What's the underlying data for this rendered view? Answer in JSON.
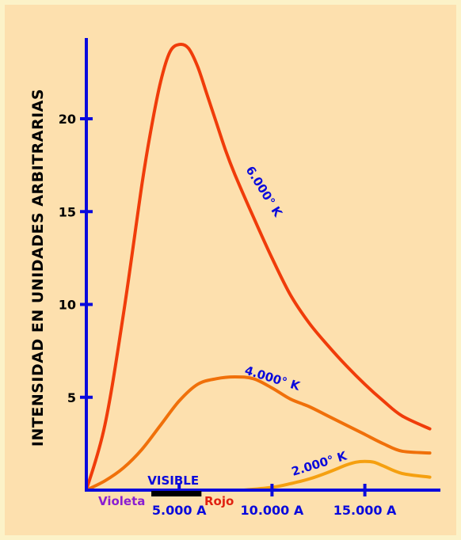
{
  "chart_data": {
    "type": "line",
    "title": "",
    "ylabel": "INTENSIDAD EN UNIDADES ARBITRARIAS",
    "xlabel": "",
    "xlim": [
      0,
      17500
    ],
    "ylim": [
      0,
      24
    ],
    "x_ticks": [
      {
        "value": 5000,
        "label": "5.000 A"
      },
      {
        "value": 10000,
        "label": "10.000 A"
      },
      {
        "value": 15000,
        "label": "15.000 A"
      }
    ],
    "y_ticks": [
      {
        "value": 5,
        "label": "5"
      },
      {
        "value": 10,
        "label": "10"
      },
      {
        "value": 15,
        "label": "15"
      },
      {
        "value": 20,
        "label": "20"
      }
    ],
    "series": [
      {
        "name": "6.000° K",
        "color": "#f03c0a",
        "x": [
          0,
          1000,
          2000,
          3000,
          3500,
          4000,
          4500,
          5000,
          5500,
          6000,
          6500,
          7000,
          7500,
          8000,
          9000,
          10000,
          11000,
          12000,
          13000,
          14000,
          15000,
          16000,
          17000,
          18500
        ],
        "y": [
          0,
          3.5,
          9.5,
          16.5,
          19.5,
          22,
          23.6,
          24,
          23.8,
          22.8,
          21.3,
          19.8,
          18.3,
          17,
          14.7,
          12.5,
          10.5,
          9,
          7.8,
          6.7,
          5.7,
          4.8,
          4,
          3.3
        ]
      },
      {
        "name": "4.000° K",
        "color": "#f0700a",
        "x": [
          0,
          1000,
          2000,
          3000,
          4000,
          5000,
          6000,
          7000,
          8000,
          9000,
          10000,
          11000,
          12000,
          13000,
          14000,
          15000,
          16000,
          17000,
          18500
        ],
        "y": [
          0,
          0.5,
          1.2,
          2.2,
          3.5,
          4.8,
          5.7,
          6,
          6.1,
          6,
          5.5,
          4.9,
          4.5,
          4,
          3.5,
          3,
          2.5,
          2.1,
          2
        ]
      },
      {
        "name": "2.000° K",
        "color": "#f5a010",
        "x": [
          8500,
          10000,
          11000,
          12000,
          13000,
          14000,
          14500,
          15000,
          15500,
          16000,
          17000,
          18500
        ],
        "y": [
          0,
          0.15,
          0.35,
          0.6,
          0.95,
          1.35,
          1.5,
          1.55,
          1.5,
          1.3,
          0.9,
          0.7
        ]
      }
    ],
    "visible_band": {
      "label": "VISIBLE",
      "x_start": 3500,
      "x_end": 6200,
      "color": "#000000"
    },
    "visible_ends": {
      "left": "Violeta",
      "right": "Rojo"
    },
    "colors": {
      "axis": "#0a0adc",
      "label_blue": "#0a0adc",
      "violet": "#8a1ed2",
      "red": "#e02010",
      "background": "#fde0ae",
      "border": "#fcf2c8"
    }
  }
}
